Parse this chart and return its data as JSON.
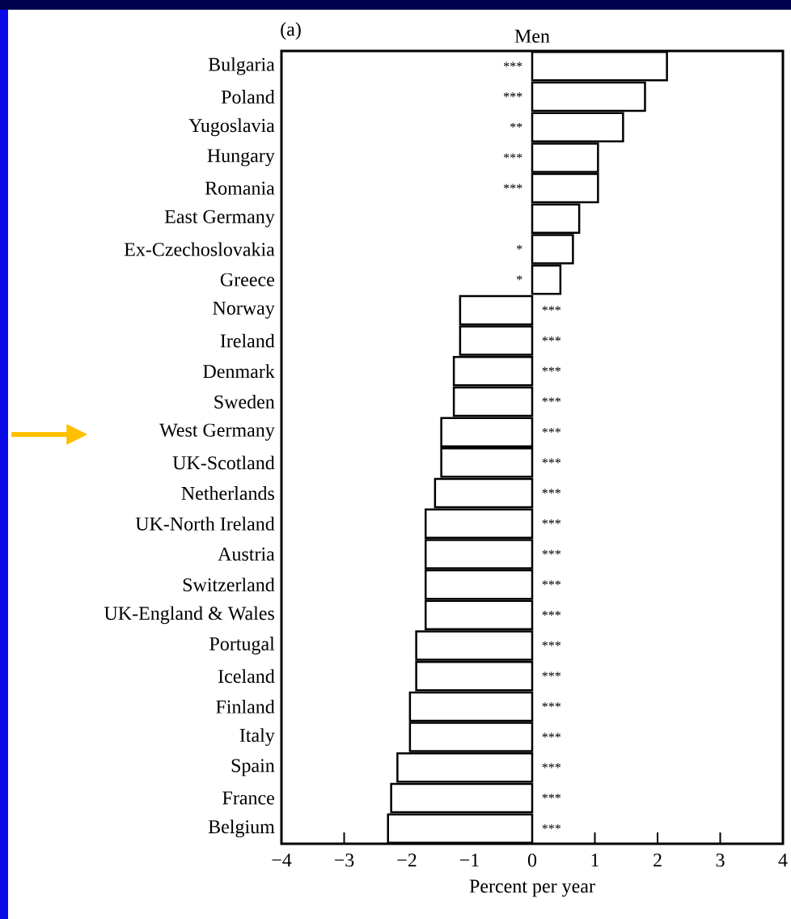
{
  "chart_data": {
    "type": "bar",
    "orientation": "horizontal",
    "title": "Men",
    "xlabel": "Percent per year",
    "annotations": [
      "(a)"
    ],
    "categories": [
      "Bulgaria",
      "Poland",
      "Yugoslavia",
      "Hungary",
      "Romania",
      "East Germany",
      "Ex-Czechoslovakia",
      "Greece",
      "Norway",
      "Ireland",
      "Denmark",
      "Sweden",
      "West Germany",
      "UK-Scotland",
      "Netherlands",
      "UK-North Ireland",
      "Austria",
      "Switzerland",
      "UK-England & Wales",
      "Portugal",
      "Iceland",
      "Finland",
      "Italy",
      "Spain",
      "France",
      "Belgium"
    ],
    "values": [
      2.15,
      1.8,
      1.45,
      1.05,
      1.05,
      0.75,
      0.65,
      0.45,
      -1.15,
      -1.15,
      -1.25,
      -1.25,
      -1.45,
      -1.45,
      -1.55,
      -1.7,
      -1.7,
      -1.7,
      -1.7,
      -1.85,
      -1.85,
      -1.95,
      -1.95,
      -2.15,
      -2.25,
      -2.3
    ],
    "value_labels": [
      "***",
      "***",
      "**",
      "***",
      "***",
      null,
      "*",
      "*",
      "***",
      "***",
      "***",
      "***",
      "***",
      "***",
      "***",
      "***",
      "***",
      "***",
      "***",
      "***",
      "***",
      "***",
      "***",
      "***",
      "***",
      "***"
    ],
    "color": "#ffffff",
    "xlim": [
      -4,
      4
    ],
    "xticks": [
      {
        "value": -4,
        "label": "−4"
      },
      {
        "value": -3,
        "label": "−3"
      },
      {
        "value": -2,
        "label": "−2"
      },
      {
        "value": -1,
        "label": "−1"
      },
      0,
      1,
      2,
      3,
      4
    ]
  }
}
